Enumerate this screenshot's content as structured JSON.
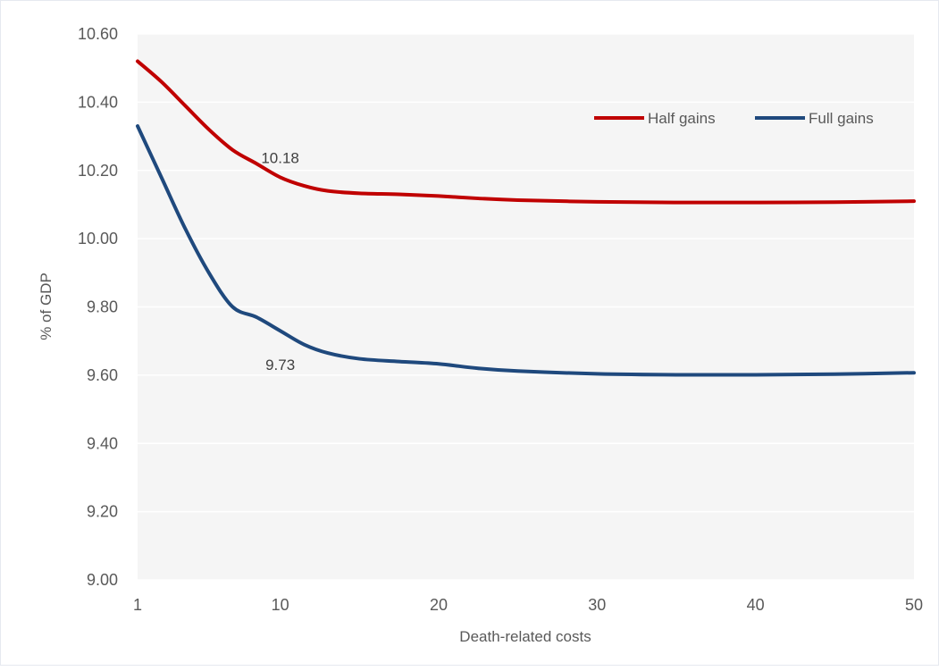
{
  "chart_data": {
    "type": "line",
    "title": "",
    "xlabel": "Death-related costs",
    "ylabel": "% of GDP",
    "xlim": [
      1,
      50
    ],
    "ylim": [
      9.0,
      10.6
    ],
    "x_ticks": [
      1,
      10,
      20,
      30,
      40,
      50
    ],
    "y_ticks": [
      "9.00",
      "9.20",
      "9.40",
      "9.60",
      "9.80",
      "10.00",
      "10.20",
      "10.40",
      "10.60"
    ],
    "grid": "horizontal",
    "legend_position": "top-right",
    "background_color": "#f5f5f5",
    "x": [
      1,
      2.5,
      4,
      5.5,
      7,
      8.5,
      10,
      11.5,
      13,
      15,
      17.5,
      20,
      22.5,
      25,
      30,
      35,
      40,
      45,
      50
    ],
    "series": [
      {
        "name": "Half gains",
        "color": "#c00000",
        "values": [
          10.52,
          10.46,
          10.39,
          10.32,
          10.26,
          10.22,
          10.18,
          10.155,
          10.14,
          10.133,
          10.13,
          10.125,
          10.118,
          10.113,
          10.108,
          10.106,
          10.106,
          10.107,
          10.11
        ]
      },
      {
        "name": "Full gains",
        "color": "#1f497d",
        "values": [
          10.33,
          10.18,
          10.03,
          9.9,
          9.8,
          9.77,
          9.73,
          9.69,
          9.665,
          9.648,
          9.64,
          9.633,
          9.62,
          9.612,
          9.604,
          9.601,
          9.601,
          9.603,
          9.607
        ]
      }
    ],
    "annotations": [
      {
        "series": "Half gains",
        "x": 10,
        "y": 10.18,
        "text": "10.18"
      },
      {
        "series": "Full gains",
        "x": 10,
        "y": 9.73,
        "text": "9.73"
      }
    ]
  }
}
